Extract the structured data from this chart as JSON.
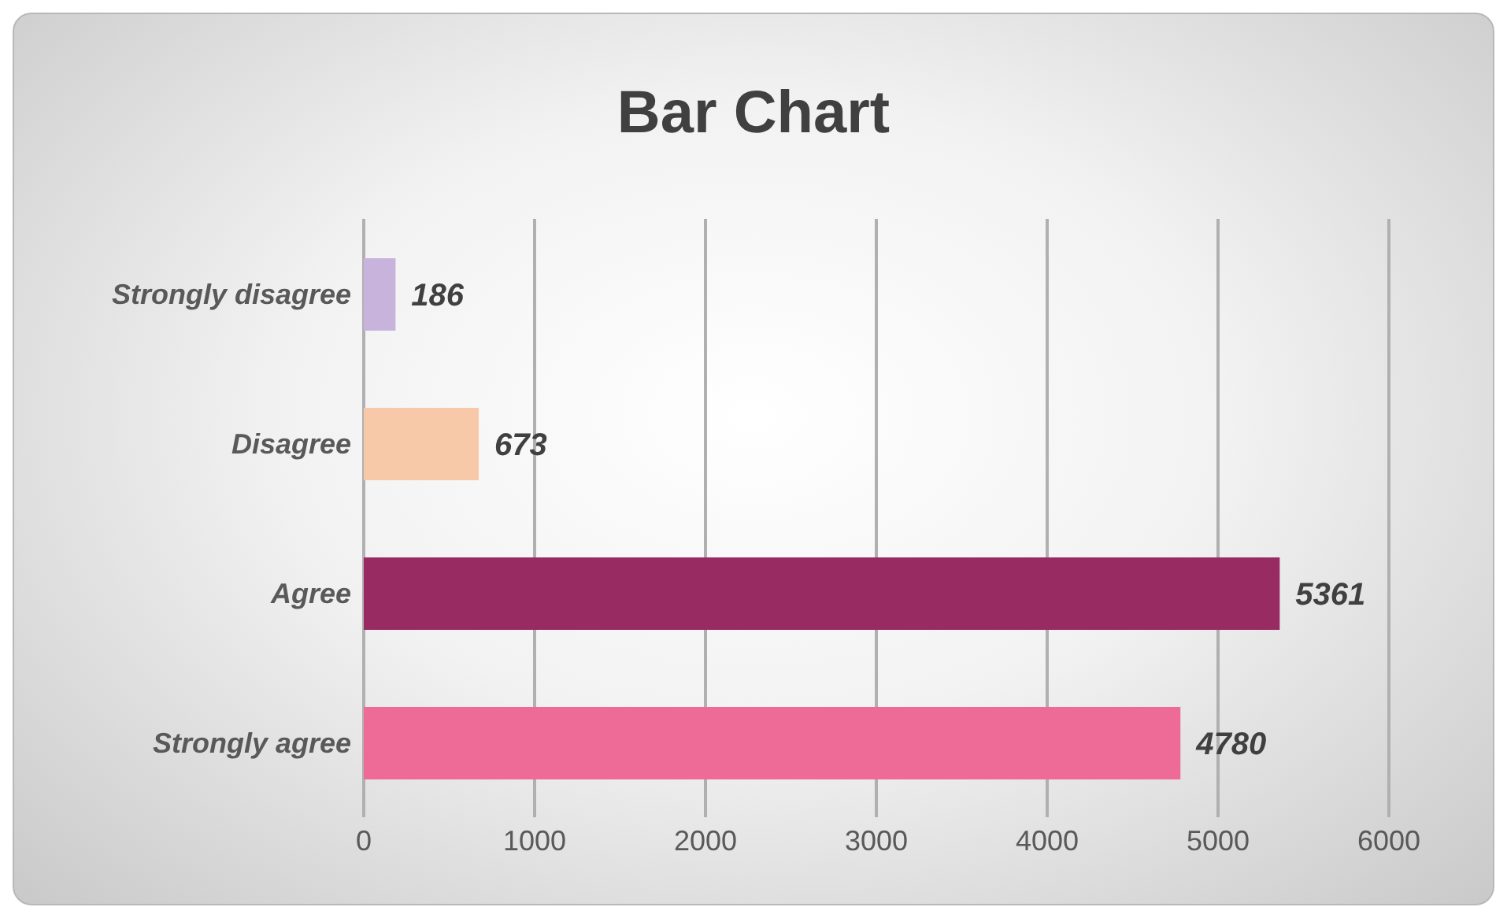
{
  "chart_data": {
    "type": "bar",
    "orientation": "horizontal",
    "title": "Bar Chart",
    "categories": [
      "Strongly disagree",
      "Disagree",
      "Agree",
      "Strongly agree"
    ],
    "values": [
      186,
      673,
      5361,
      4780
    ],
    "colors": [
      "#c8b3dd",
      "#f8c9a8",
      "#982b62",
      "#ee6b97"
    ],
    "xlim": [
      0,
      6000
    ],
    "xticks": [
      0,
      1000,
      2000,
      3000,
      4000,
      5000,
      6000
    ],
    "grid": "x",
    "data_labels": true
  }
}
